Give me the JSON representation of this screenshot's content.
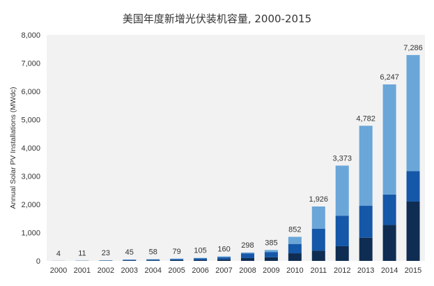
{
  "chart_data": {
    "type": "bar",
    "stacked": true,
    "title": "美国年度新增光伏装机容量, 2000-2015",
    "ylabel": "Annual Solar PV Installations (MWdc)",
    "xlabel": "",
    "ylim": [
      0,
      8000
    ],
    "yticks": [
      0,
      1000,
      2000,
      3000,
      4000,
      5000,
      6000,
      7000,
      8000
    ],
    "ytick_labels": [
      "0",
      "1,000",
      "2,000",
      "3,000",
      "4,000",
      "5,000",
      "6,000",
      "7,000",
      "8,000"
    ],
    "grid": false,
    "legend": "none",
    "categories": [
      "2000",
      "2001",
      "2002",
      "2003",
      "2004",
      "2005",
      "2006",
      "2007",
      "2008",
      "2009",
      "2010",
      "2011",
      "2012",
      "2013",
      "2014",
      "2015"
    ],
    "series": [
      {
        "color": "#0f2d52",
        "values": [
          1,
          3,
          7,
          14,
          18,
          26,
          35,
          55,
          100,
          130,
          270,
          360,
          520,
          820,
          1270,
          2100
        ]
      },
      {
        "color": "#1557a8",
        "values": [
          2,
          6,
          12,
          24,
          30,
          40,
          52,
          75,
          160,
          180,
          330,
          780,
          1080,
          1130,
          1080,
          1080
        ]
      },
      {
        "color": "#6aa6d8",
        "values": [
          1,
          2,
          4,
          7,
          10,
          13,
          18,
          30,
          38,
          75,
          252,
          786,
          1773,
          2832,
          3897,
          4106
        ]
      }
    ],
    "totals": [
      4,
      11,
      23,
      45,
      58,
      79,
      105,
      160,
      298,
      385,
      852,
      1926,
      3373,
      4782,
      6247,
      7286
    ],
    "total_labels": [
      "4",
      "11",
      "23",
      "45",
      "58",
      "79",
      "105",
      "160",
      "298",
      "385",
      "852",
      "1,926",
      "3,373",
      "4,782",
      "6,247",
      "7,286"
    ]
  }
}
